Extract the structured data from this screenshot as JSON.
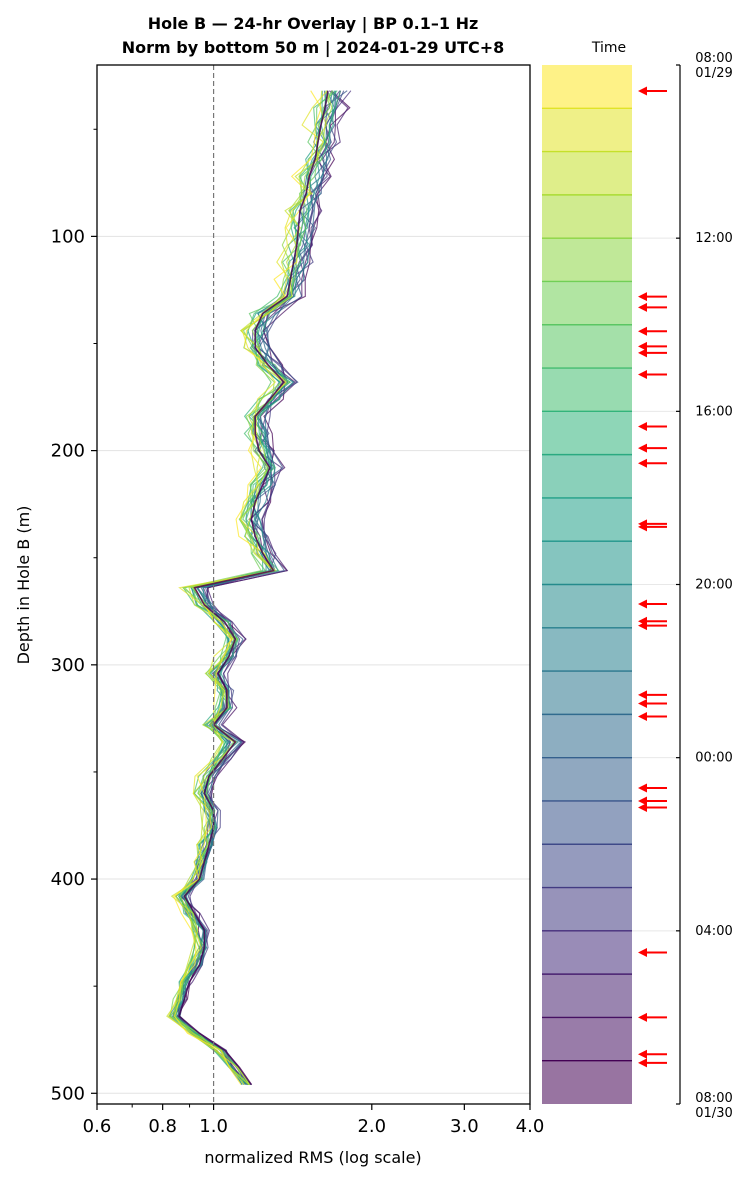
{
  "chart_data": {
    "type": "line",
    "title_line1": "Hole B — 24-hr Overlay  |  BP 0.1–1 Hz",
    "title_line2": "Norm by bottom 50 m  |  2024-01-29 UTC+8",
    "xlabel": "normalized RMS  (log scale)",
    "ylabel": "Depth in Hole B (m)",
    "x_scale": "log",
    "xlim": [
      0.6,
      4.0
    ],
    "ylim": [
      505,
      20
    ],
    "x_ticks": [
      0.6,
      0.8,
      1.0,
      2.0,
      3.0,
      4.0
    ],
    "x_tick_labels": [
      "0.6",
      "0.8",
      "1.0",
      "2.0",
      "3.0",
      "4.0"
    ],
    "y_ticks": [
      100,
      200,
      300,
      400,
      500
    ],
    "y_tick_labels": [
      "100",
      "200",
      "300",
      "400",
      "500"
    ],
    "reference_line_x": 1.0,
    "grid": "horizontal",
    "colormap": "viridis",
    "profile_count": 24,
    "depths": [
      32,
      40,
      48,
      56,
      64,
      72,
      80,
      88,
      96,
      104,
      112,
      120,
      128,
      136,
      144,
      152,
      160,
      168,
      176,
      184,
      192,
      200,
      208,
      216,
      224,
      232,
      240,
      248,
      256,
      264,
      272,
      280,
      288,
      296,
      304,
      312,
      320,
      328,
      336,
      344,
      352,
      360,
      368,
      376,
      384,
      392,
      400,
      408,
      416,
      424,
      432,
      440,
      448,
      456,
      464,
      472,
      480,
      488,
      496
    ],
    "mean_profile": [
      1.65,
      1.63,
      1.6,
      1.58,
      1.56,
      1.52,
      1.5,
      1.46,
      1.45,
      1.44,
      1.42,
      1.4,
      1.38,
      1.24,
      1.2,
      1.2,
      1.27,
      1.36,
      1.28,
      1.2,
      1.2,
      1.22,
      1.28,
      1.24,
      1.2,
      1.18,
      1.2,
      1.24,
      1.3,
      0.92,
      0.96,
      1.05,
      1.1,
      1.07,
      1.02,
      1.06,
      1.06,
      1.0,
      1.1,
      1.04,
      0.98,
      0.96,
      1.0,
      1.0,
      0.98,
      0.96,
      0.94,
      0.88,
      0.92,
      0.96,
      0.96,
      0.94,
      0.9,
      0.88,
      0.86,
      0.94,
      1.05,
      1.12,
      1.18
    ],
    "colorbar": {
      "label": "Time",
      "tick_labels": [
        "08:00\n01/29",
        "12:00",
        "16:00",
        "20:00",
        "00:00",
        "04:00",
        "08:00\n01/30"
      ],
      "tick_hours": [
        0,
        4,
        8,
        12,
        16,
        20,
        24
      ],
      "bands": 24
    },
    "event_arrows_hours": [
      0.6,
      5.35,
      5.6,
      6.15,
      6.5,
      6.65,
      7.15,
      8.35,
      8.85,
      9.2,
      10.6,
      10.67,
      12.45,
      12.85,
      12.95,
      14.55,
      14.75,
      15.05,
      16.7,
      17.0,
      17.15,
      20.5,
      22.0,
      22.85,
      23.05
    ]
  }
}
